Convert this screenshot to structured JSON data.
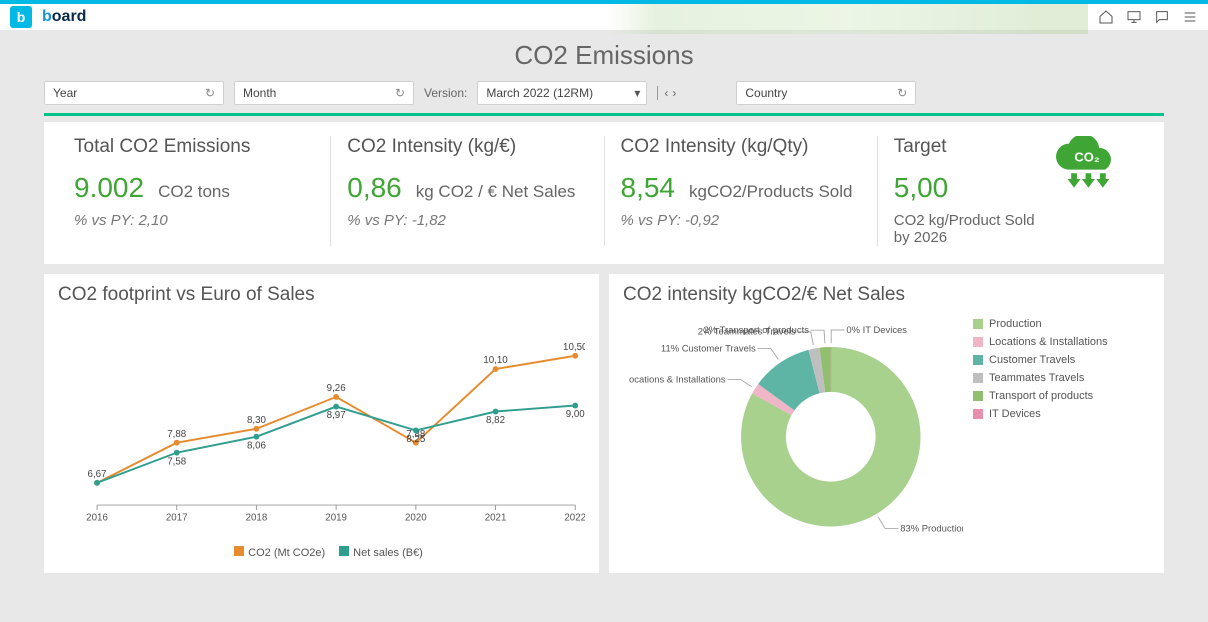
{
  "header": {
    "logo_letter": "b",
    "logo_word_blue": "b",
    "logo_word_dark": "oard"
  },
  "page_title": "CO2 Emissions",
  "filters": {
    "year_label": "Year",
    "month_label": "Month",
    "version_label": "Version:",
    "version_value": "March 2022 (12RM)",
    "country_label": "Country"
  },
  "kpi": {
    "total": {
      "title": "Total CO2 Emissions",
      "value": "9.002",
      "unit": "CO2 tons",
      "sub": "% vs PY:  2,10",
      "value_color": "#3fa535"
    },
    "intensity_eur": {
      "title": "CO2 Intensity (kg/€)",
      "value": "0,86",
      "unit": "kg CO2 / € Net Sales",
      "sub": "% vs PY:  -1,82",
      "value_color": "#3fa535"
    },
    "intensity_qty": {
      "title": "CO2 Intensity (kg/Qty)",
      "value": "8,54",
      "unit": "kgCO2/Products Sold",
      "sub": "% vs PY:  -0,92",
      "value_color": "#3fa535"
    },
    "target": {
      "title": "Target",
      "value": "5,00",
      "unit_line1": "CO2 kg/Product Sold",
      "unit_line2": "by 2026",
      "value_color": "#3fa535",
      "icon_color": "#3fa535"
    }
  },
  "line_chart": {
    "title": "CO2 footprint vs Euro of Sales",
    "x_categories": [
      "2016",
      "2017",
      "2018",
      "2019",
      "2020",
      "2021",
      "2022"
    ],
    "series": [
      {
        "name": "CO2 (Mt CO2e)",
        "color": "#e78b2f",
        "values": [
          6.67,
          7.88,
          8.3,
          9.26,
          7.88,
          10.1,
          10.5
        ],
        "labels": [
          "6,67",
          "7,88",
          "8,30",
          "9,26",
          "7,88",
          "10,10",
          "10,50"
        ]
      },
      {
        "name": "Net sales (B€)",
        "color": "#2f9e8f",
        "values": [
          6.67,
          7.58,
          8.06,
          8.97,
          8.25,
          8.82,
          9.0
        ],
        "labels": [
          "",
          "7,58",
          "8,06",
          "8,97",
          "8,25",
          "8,82",
          "9,00"
        ]
      }
    ],
    "y_min": 6.0,
    "y_max": 11.0,
    "background_color": "#ffffff",
    "axis_color": "#cccccc",
    "label_fontsize": 10
  },
  "donut_chart": {
    "title": "CO2 intensity kgCO2/€ Net Sales",
    "inner_radius_ratio": 0.5,
    "slices": [
      {
        "label": "Production",
        "pct": 83,
        "color": "#a8d18d",
        "callout": "83% Production"
      },
      {
        "label": "Locations & Installations",
        "pct": 2,
        "color": "#efb6c8",
        "callout": "ocations & Installations"
      },
      {
        "label": "Customer Travels",
        "pct": 11,
        "color": "#5fb5a5",
        "callout": "11% Customer Travels"
      },
      {
        "label": "Teammates Travels",
        "pct": 2,
        "color": "#bfbfbf",
        "callout": "2% Teammates Travels"
      },
      {
        "label": "Transport of products",
        "pct": 2,
        "color": "#8fbf6f",
        "callout": "2% Transport of products"
      },
      {
        "label": "IT Devices",
        "pct": 0,
        "color": "#e88fb0",
        "callout": "0% IT Devices"
      }
    ],
    "legend_items": [
      "Production",
      "Locations & Installations",
      "Customer Travels",
      "Teammates Travels",
      "Transport of products",
      "IT Devices"
    ],
    "background_color": "#ffffff"
  }
}
